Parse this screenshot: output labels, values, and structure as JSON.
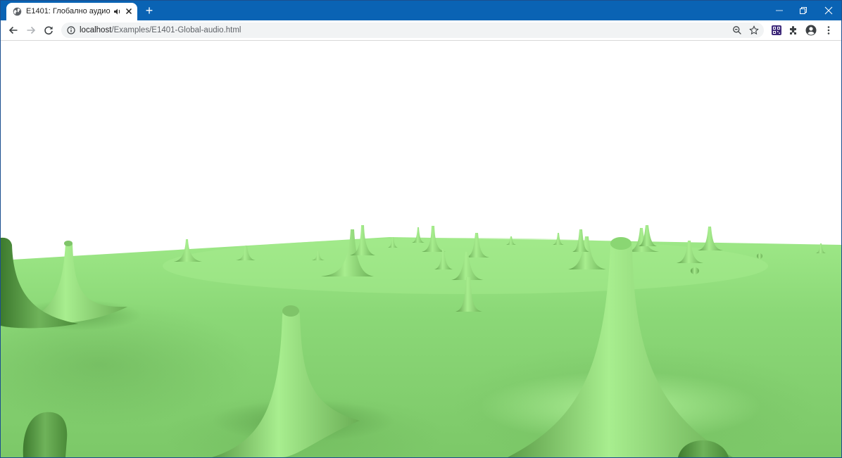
{
  "browser": {
    "tab": {
      "title": "E1401: Глобално аудио",
      "favicon": "globe-icon",
      "audio_icon": "speaker-icon",
      "close_icon": "close-icon"
    },
    "new_tab_label": "+",
    "window_controls": [
      "minimize-icon",
      "restore-icon",
      "close-icon"
    ],
    "nav": {
      "back_icon": "arrow-left-icon",
      "forward_icon": "arrow-right-icon",
      "reload_icon": "reload-icon"
    },
    "address": {
      "host": "localhost",
      "path": "/Examples/E1401-Global-audio.html",
      "info_icon": "info-icon"
    },
    "toolbar_icons": [
      "zoom-icon",
      "star-icon",
      "extension-qr-icon",
      "puzzle-icon",
      "account-icon",
      "menu-icon"
    ],
    "colors": {
      "titlebar": "#0a63b4",
      "ground_light": "#9bea83",
      "ground_dark": "#6cbf58"
    }
  },
  "scene": {
    "description_icon": "3d-terrain-canvas"
  }
}
